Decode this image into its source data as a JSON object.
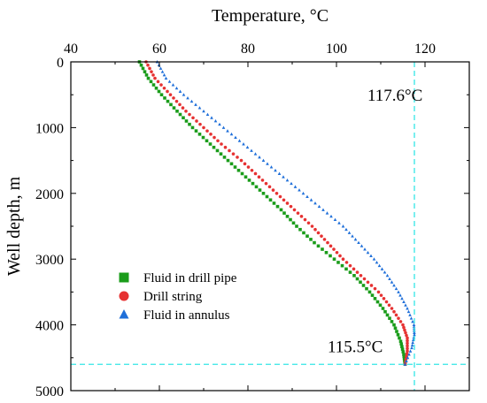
{
  "chart_data": {
    "type": "scatter",
    "xlabel": "Temperature, °C",
    "ylabel": "Well depth, m",
    "xlim": [
      40,
      130
    ],
    "ylim": [
      0,
      5000
    ],
    "y_inverted": true,
    "x_axis_position": "top",
    "x_ticks": [
      40,
      60,
      80,
      100,
      120
    ],
    "y_ticks": [
      0,
      1000,
      2000,
      3000,
      4000,
      5000
    ],
    "grid": false,
    "legend_position": "bottom-left",
    "reference_lines": [
      {
        "orientation": "vertical",
        "x": 117.6,
        "color": "#33e6e6",
        "style": "dashed"
      },
      {
        "orientation": "horizontal",
        "y": 4600,
        "color": "#33e6e6",
        "style": "dashed"
      }
    ],
    "annotations": [
      {
        "text": "117.6°C",
        "x": 107,
        "y": 500
      },
      {
        "text": "115.5°C",
        "x": 98,
        "y": 4320
      }
    ],
    "series": [
      {
        "name": "Fluid in drill pipe",
        "marker": "square",
        "color": "#1a9c1a",
        "points": [
          [
            55.5,
            0
          ],
          [
            57.5,
            250
          ],
          [
            60.5,
            500
          ],
          [
            64,
            750
          ],
          [
            67.5,
            1000
          ],
          [
            71.5,
            1250
          ],
          [
            75.5,
            1500
          ],
          [
            79.5,
            1750
          ],
          [
            83.5,
            2000
          ],
          [
            87.5,
            2250
          ],
          [
            91,
            2500
          ],
          [
            95,
            2750
          ],
          [
            99.5,
            3000
          ],
          [
            104,
            3250
          ],
          [
            107.5,
            3500
          ],
          [
            110.5,
            3750
          ],
          [
            113,
            4000
          ],
          [
            114.5,
            4250
          ],
          [
            115.2,
            4450
          ],
          [
            115.5,
            4600
          ]
        ]
      },
      {
        "name": "Drill string",
        "marker": "circle",
        "color": "#e63232",
        "points": [
          [
            57,
            0
          ],
          [
            59,
            250
          ],
          [
            62.5,
            500
          ],
          [
            66,
            750
          ],
          [
            70,
            1000
          ],
          [
            74,
            1250
          ],
          [
            78.5,
            1500
          ],
          [
            82.5,
            1750
          ],
          [
            86.5,
            2000
          ],
          [
            90.5,
            2250
          ],
          [
            94.5,
            2500
          ],
          [
            98,
            2750
          ],
          [
            101.5,
            3000
          ],
          [
            105.5,
            3250
          ],
          [
            109.5,
            3500
          ],
          [
            112.5,
            3750
          ],
          [
            115,
            4000
          ],
          [
            116,
            4200
          ],
          [
            116,
            4400
          ],
          [
            115.5,
            4600
          ]
        ]
      },
      {
        "name": "Fluid in annulus",
        "marker": "triangle",
        "color": "#1f6fd9",
        "points": [
          [
            59.5,
            0
          ],
          [
            61.5,
            250
          ],
          [
            65.5,
            500
          ],
          [
            70,
            750
          ],
          [
            74.5,
            1000
          ],
          [
            79,
            1250
          ],
          [
            83.5,
            1500
          ],
          [
            88,
            1750
          ],
          [
            92.5,
            2000
          ],
          [
            97,
            2250
          ],
          [
            101.5,
            2500
          ],
          [
            105,
            2750
          ],
          [
            108.5,
            3000
          ],
          [
            111.5,
            3250
          ],
          [
            114,
            3500
          ],
          [
            116,
            3750
          ],
          [
            117.5,
            4000
          ],
          [
            117.6,
            4150
          ],
          [
            117,
            4350
          ],
          [
            115.5,
            4600
          ]
        ]
      }
    ]
  }
}
